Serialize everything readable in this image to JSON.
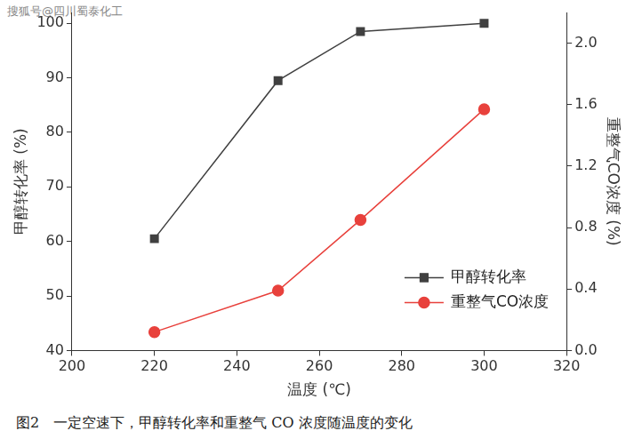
{
  "chart_data": {
    "type": "line",
    "caption": "图2　一定空速下，甲醇转化率和重整气 CO 浓度随温度的变化",
    "watermark": "搜狐号@四川蜀泰化工",
    "x_label": "温度 (℃)",
    "y_label": "甲醇转化率 (%)",
    "y2_label": "重整气CO浓度 (%)",
    "x": [
      220,
      250,
      270,
      300
    ],
    "series": [
      {
        "name": "甲醇转化率",
        "color": "#404040",
        "marker": "square",
        "line_style": "solid",
        "values": [
          60.5,
          89.5,
          98.5,
          100
        ]
      },
      {
        "name": "重整气CO浓度",
        "color": "#e8413c",
        "marker": "circle",
        "line_style": "solid",
        "axis": "y2",
        "values": [
          0.12,
          0.39,
          0.85,
          1.57
        ]
      }
    ],
    "xlim": [
      200,
      320
    ],
    "xticks": [
      200,
      220,
      240,
      260,
      280,
      300,
      320
    ],
    "ylim": [
      40,
      102
    ],
    "yticks": [
      40,
      50,
      60,
      70,
      80,
      90,
      100
    ],
    "y2lim": [
      0,
      2.2
    ],
    "y2ticks": [
      {
        "value": 0,
        "label": "0.0"
      },
      0.4,
      0.8,
      1.2,
      1.6,
      {
        "value": 2,
        "label": "2.0"
      }
    ],
    "grid": false,
    "legend": "lower right"
  }
}
